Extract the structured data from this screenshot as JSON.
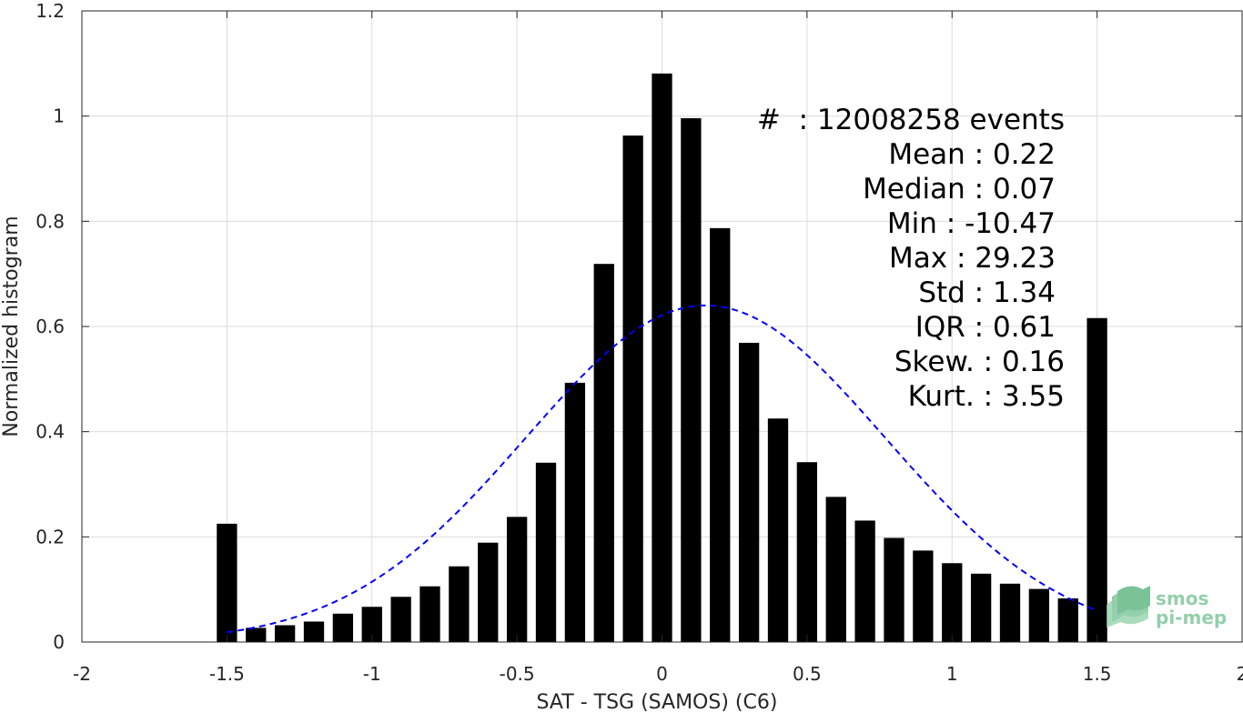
{
  "chart_data": {
    "type": "bar",
    "xlabel": "SAT - TSG (SAMOS) (C6)",
    "ylabel": "Normalized histogram",
    "xlim": [
      -2,
      2
    ],
    "ylim": [
      0,
      1.2
    ],
    "xticks": [
      -2,
      -1.5,
      -1,
      -0.5,
      0,
      0.5,
      1,
      1.5,
      2
    ],
    "xtick_labels": [
      "-2",
      "-1.5",
      "-1",
      "-0.5",
      "0",
      "0.5",
      "1",
      "1.5",
      "2"
    ],
    "yticks": [
      0,
      0.2,
      0.4,
      0.6,
      0.8,
      1,
      1.2
    ],
    "ytick_labels": [
      "0",
      "0.2",
      "0.4",
      "0.6",
      "0.8",
      "1",
      "1.2"
    ],
    "grid": true,
    "bar_color": "#000000",
    "x": [
      -1.5,
      -1.4,
      -1.3,
      -1.2,
      -1.1,
      -1.0,
      -0.9,
      -0.8,
      -0.7,
      -0.6,
      -0.5,
      -0.4,
      -0.3,
      -0.2,
      -0.1,
      0.0,
      0.1,
      0.2,
      0.3,
      0.4,
      0.5,
      0.6,
      0.7,
      0.8,
      0.9,
      1.0,
      1.1,
      1.2,
      1.3,
      1.4,
      1.5
    ],
    "values": [
      0.225,
      0.027,
      0.032,
      0.039,
      0.054,
      0.067,
      0.086,
      0.106,
      0.144,
      0.189,
      0.238,
      0.341,
      0.493,
      0.719,
      0.963,
      1.081,
      0.996,
      0.787,
      0.569,
      0.425,
      0.342,
      0.276,
      0.231,
      0.198,
      0.174,
      0.15,
      0.13,
      0.111,
      0.101,
      0.083,
      0.616
    ],
    "fit_curve": {
      "style": "dashed",
      "color": "#0000ff",
      "mean": 0.15,
      "std": 0.62,
      "peak": 0.64,
      "x_range": [
        -1.5,
        1.5
      ]
    },
    "annotations": [
      "#  : 12008258 events",
      "Mean : 0.22",
      "Median : 0.07",
      "Min : -10.47",
      "Max : 29.23",
      "Std : 1.34",
      "IQR : 0.61",
      "Skew. : 0.16",
      "Kurt. : 3.55"
    ]
  },
  "logo": {
    "line1": "smos",
    "line2": "pi-mep",
    "color": "#6fbf8f"
  }
}
